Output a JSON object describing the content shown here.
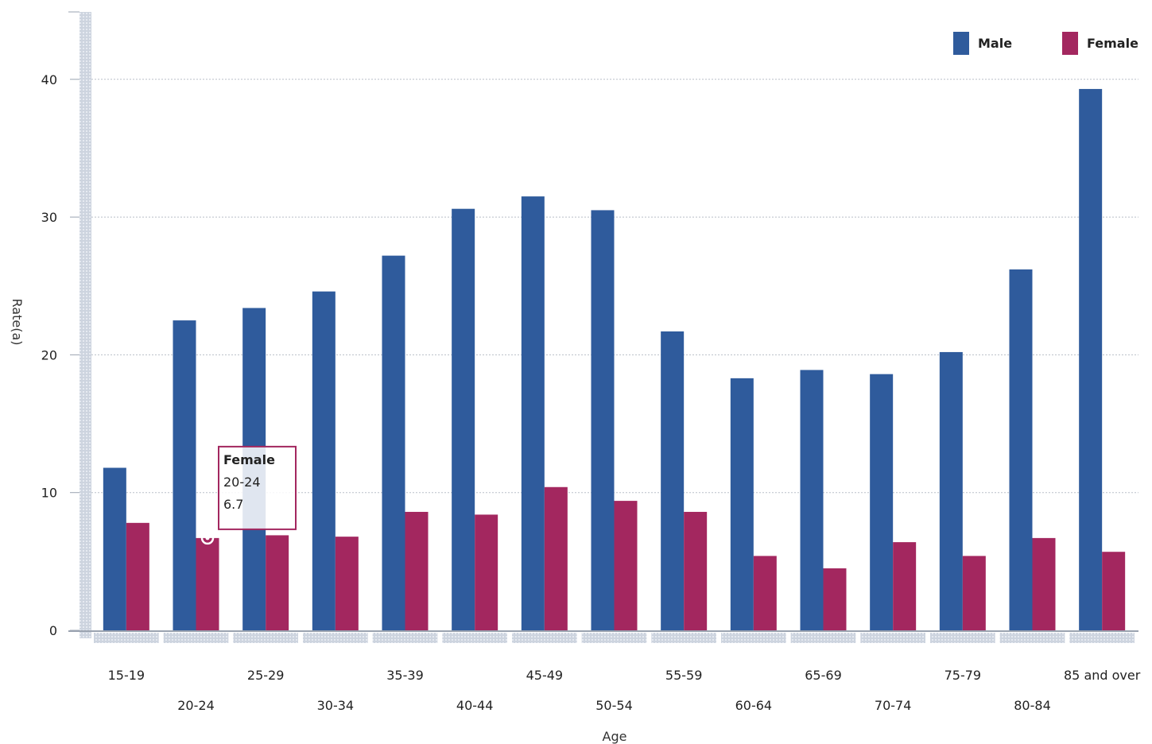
{
  "chart_data": {
    "type": "bar",
    "title": "",
    "xlabel": "Age",
    "ylabel": "Rate(a)",
    "ylim": [
      0,
      45
    ],
    "yticks": [
      0,
      10,
      20,
      30,
      40
    ],
    "grid": true,
    "legend_position": "top-right",
    "categories": [
      "15-19",
      "20-24",
      "25-29",
      "30-34",
      "35-39",
      "40-44",
      "45-49",
      "50-54",
      "55-59",
      "60-64",
      "65-69",
      "70-74",
      "75-79",
      "80-84",
      "85 and over"
    ],
    "series": [
      {
        "name": "Male",
        "color": "#2f5b9c",
        "values": [
          11.8,
          22.5,
          23.4,
          24.6,
          27.2,
          30.6,
          31.5,
          30.5,
          21.7,
          18.3,
          18.9,
          18.6,
          20.2,
          26.2,
          39.3
        ]
      },
      {
        "name": "Female",
        "color": "#a3275f",
        "values": [
          7.8,
          6.7,
          6.9,
          6.8,
          8.6,
          8.4,
          10.4,
          9.4,
          8.6,
          5.4,
          4.5,
          6.4,
          5.4,
          6.7,
          5.7
        ]
      }
    ],
    "tooltip": {
      "series": "Female",
      "category": "20-24",
      "value": "6.7"
    }
  }
}
